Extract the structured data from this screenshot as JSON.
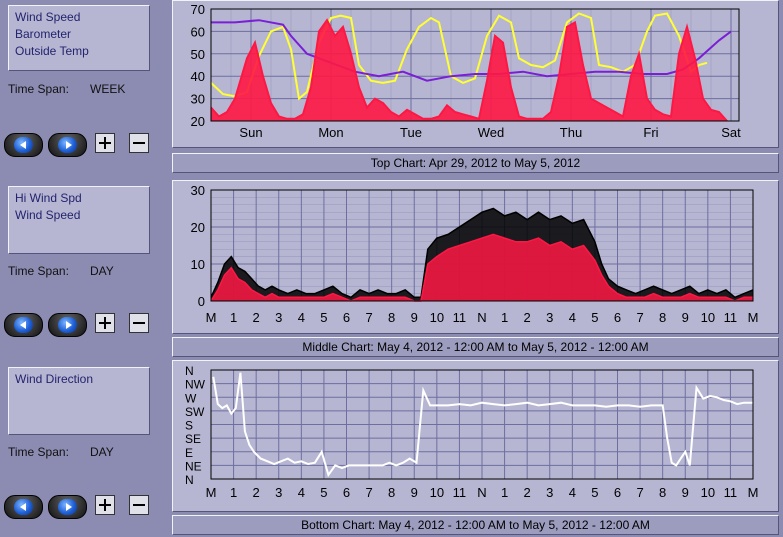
{
  "panels": [
    {
      "series": [
        "Wind Speed",
        "Barometer",
        "Outside Temp"
      ],
      "time_span_label": "Time Span:",
      "time_span_value": "WEEK",
      "caption": "Top Chart:  Apr 29, 2012  to  May 5, 2012"
    },
    {
      "series": [
        "Hi Wind Spd",
        "Wind Speed"
      ],
      "time_span_label": "Time Span:",
      "time_span_value": "DAY",
      "caption": "Middle Chart:  May 4, 2012 - 12:00 AM  to  May 5, 2012 - 12:00 AM"
    },
    {
      "series": [
        "Wind Direction"
      ],
      "time_span_label": "Time Span:",
      "time_span_value": "DAY",
      "caption": "Bottom Chart:  May 4, 2012 - 12:00 AM  to  May 5, 2012 - 12:00 AM"
    }
  ],
  "controls": {
    "prev_icon": "left-arrow-icon",
    "next_icon": "right-arrow-icon",
    "zoom_in_icon": "plus-icon",
    "zoom_out_icon": "minus-icon"
  },
  "colors": {
    "background": "#8c8cb2",
    "plot_background": "#b6b6d2",
    "grid": "#6e6ea0",
    "wind_speed": "#ff1744",
    "barometer": "#7a1fd6",
    "outside_temp": "#ffff33",
    "hi_wind": "#000000",
    "wind_direction": "#ffffff"
  },
  "chart_data": [
    {
      "type": "line",
      "ylim": [
        20,
        70
      ],
      "yticks": [
        "20",
        "30",
        "40",
        "50",
        "60",
        "70"
      ],
      "xticks": [
        "Sun",
        "Mon",
        "Tue",
        "Wed",
        "Thu",
        "Fri",
        "Sat"
      ],
      "x_range_days": [
        0,
        6.6
      ],
      "series": [
        {
          "name": "Outside Temp",
          "color": "#ffff33",
          "x": [
            0,
            0.15,
            0.3,
            0.45,
            0.6,
            0.75,
            0.9,
            1.0,
            1.1,
            1.2,
            1.35,
            1.5,
            1.62,
            1.75,
            1.85,
            2.0,
            2.15,
            2.3,
            2.45,
            2.6,
            2.75,
            2.85,
            3.0,
            3.15,
            3.3,
            3.45,
            3.6,
            3.75,
            3.85,
            4.0,
            4.15,
            4.3,
            4.45,
            4.6,
            4.75,
            4.85,
            5.0,
            5.15,
            5.3,
            5.45,
            5.55,
            5.7,
            5.85,
            6.0,
            6.1,
            6.2
          ],
          "y": [
            37,
            32,
            31,
            33,
            49,
            60,
            62,
            52,
            30,
            33,
            55,
            66,
            67,
            66,
            45,
            38,
            37,
            38,
            52,
            62,
            66,
            64,
            40,
            37,
            39,
            58,
            67,
            64,
            48,
            45,
            44,
            47,
            64,
            68,
            66,
            45,
            44,
            42,
            45,
            60,
            67,
            68,
            58,
            42,
            45,
            46
          ]
        },
        {
          "name": "Barometer",
          "color": "#7a1fd6",
          "x": [
            0,
            0.3,
            0.6,
            0.9,
            1.0,
            1.2,
            1.5,
            1.8,
            2.1,
            2.4,
            2.7,
            3.0,
            3.3,
            3.6,
            3.9,
            4.2,
            4.5,
            4.8,
            5.1,
            5.4,
            5.7,
            5.9,
            6.1,
            6.35,
            6.5
          ],
          "y": [
            64,
            64,
            65,
            63,
            58,
            50,
            46,
            42,
            40,
            42,
            38,
            40,
            41,
            41,
            42,
            40,
            41,
            42,
            42,
            41,
            41,
            43,
            48,
            56,
            60
          ]
        },
        {
          "name": "Wind Speed",
          "color": "#ff1744",
          "x": [
            0,
            0.1,
            0.2,
            0.3,
            0.45,
            0.55,
            0.65,
            0.75,
            0.85,
            0.95,
            1.05,
            1.15,
            1.25,
            1.35,
            1.45,
            1.55,
            1.65,
            1.75,
            1.85,
            1.95,
            2.05,
            2.15,
            2.25,
            2.35,
            2.45,
            2.55,
            2.65,
            2.75,
            2.85,
            2.95,
            3.05,
            3.15,
            3.25,
            3.35,
            3.45,
            3.55,
            3.65,
            3.75,
            3.85,
            3.95,
            4.05,
            4.15,
            4.25,
            4.35,
            4.45,
            4.55,
            4.65,
            4.75,
            4.85,
            4.95,
            5.05,
            5.15,
            5.25,
            5.35,
            5.45,
            5.55,
            5.65,
            5.75,
            5.85,
            5.95,
            6.05,
            6.15,
            6.25,
            6.35,
            6.45
          ],
          "y": [
            26,
            22,
            24,
            30,
            48,
            55,
            40,
            28,
            22,
            21,
            21,
            23,
            35,
            60,
            65,
            58,
            62,
            50,
            35,
            26,
            30,
            28,
            24,
            22,
            25,
            23,
            21,
            21,
            22,
            27,
            24,
            23,
            22,
            21,
            38,
            58,
            55,
            35,
            22,
            21,
            21,
            21,
            24,
            40,
            62,
            64,
            45,
            30,
            28,
            26,
            24,
            22,
            40,
            50,
            30,
            25,
            23,
            22,
            50,
            62,
            48,
            30,
            25,
            24,
            20
          ]
        }
      ]
    },
    {
      "type": "line",
      "ylim": [
        0,
        30
      ],
      "yticks": [
        "0",
        "10",
        "20",
        "30"
      ],
      "xticks": [
        "M",
        "1",
        "2",
        "3",
        "4",
        "5",
        "6",
        "7",
        "8",
        "9",
        "10",
        "11",
        "N",
        "1",
        "2",
        "3",
        "4",
        "5",
        "6",
        "7",
        "8",
        "9",
        "10",
        "11",
        "M"
      ],
      "x_range_hours": [
        0,
        24
      ],
      "series": [
        {
          "name": "Hi Wind Spd",
          "color": "#000000",
          "x": [
            0,
            0.3,
            0.6,
            0.9,
            1.2,
            1.5,
            1.8,
            2.1,
            2.4,
            2.7,
            3,
            3.4,
            3.8,
            4.2,
            4.6,
            5,
            5.4,
            5.8,
            6.2,
            6.6,
            7,
            7.4,
            7.8,
            8.2,
            8.6,
            9,
            9.3,
            9.6,
            10,
            10.5,
            11,
            11.5,
            12,
            12.5,
            13,
            13.5,
            14,
            14.5,
            15,
            15.5,
            16,
            16.5,
            17,
            17.3,
            17.6,
            18,
            18.4,
            18.8,
            19.2,
            19.6,
            20,
            20.4,
            20.8,
            21.2,
            21.6,
            22,
            22.4,
            22.8,
            23.2,
            23.6,
            24
          ],
          "y": [
            1,
            5,
            10,
            12,
            9,
            8,
            6,
            4,
            3,
            4,
            3,
            2,
            3,
            2,
            2,
            3,
            4,
            2,
            1,
            3,
            2,
            3,
            2,
            2,
            3,
            1,
            1,
            14,
            17,
            18,
            20,
            22,
            24,
            25,
            23,
            24,
            22,
            24,
            22,
            23,
            21,
            22,
            16,
            10,
            6,
            4,
            3,
            2,
            3,
            4,
            3,
            2,
            3,
            4,
            2,
            3,
            2,
            3,
            1,
            2,
            3
          ]
        },
        {
          "name": "Wind Speed",
          "color": "#ff1744",
          "x": [
            0,
            0.3,
            0.6,
            0.9,
            1.2,
            1.5,
            1.8,
            2.1,
            2.4,
            2.7,
            3,
            3.4,
            3.8,
            4.2,
            4.6,
            5,
            5.4,
            5.8,
            6.2,
            6.6,
            7,
            7.4,
            7.8,
            8.2,
            8.6,
            9,
            9.3,
            9.6,
            10,
            10.5,
            11,
            11.5,
            12,
            12.5,
            13,
            13.5,
            14,
            14.5,
            15,
            15.5,
            16,
            16.5,
            17,
            17.3,
            17.6,
            18,
            18.4,
            18.8,
            19.2,
            19.6,
            20,
            20.4,
            20.8,
            21.2,
            21.6,
            22,
            22.4,
            22.8,
            23.2,
            23.6,
            24
          ],
          "y": [
            0,
            3,
            7,
            9,
            6,
            5,
            3,
            2,
            1,
            2,
            1,
            1,
            1,
            1,
            1,
            1,
            2,
            1,
            0,
            1,
            1,
            1,
            1,
            1,
            1,
            0,
            0,
            10,
            12,
            14,
            15,
            16,
            17,
            18,
            17,
            16,
            16,
            17,
            15,
            16,
            14,
            15,
            11,
            7,
            4,
            2,
            1,
            1,
            1,
            2,
            1,
            1,
            1,
            2,
            1,
            1,
            1,
            1,
            0,
            1,
            1
          ]
        }
      ]
    },
    {
      "type": "line",
      "ylabels": [
        "N",
        "NE",
        "E",
        "SE",
        "S",
        "SW",
        "W",
        "NW",
        "N"
      ],
      "xticks": [
        "M",
        "1",
        "2",
        "3",
        "4",
        "5",
        "6",
        "7",
        "8",
        "9",
        "10",
        "11",
        "N",
        "1",
        "2",
        "3",
        "4",
        "5",
        "6",
        "7",
        "8",
        "9",
        "10",
        "11",
        "M"
      ],
      "x_range_hours": [
        0,
        24
      ],
      "series": [
        {
          "name": "Wind Direction",
          "color": "#ffffff",
          "x": [
            0.1,
            0.3,
            0.5,
            0.7,
            0.9,
            1.1,
            1.3,
            1.5,
            1.7,
            1.9,
            2.2,
            2.5,
            2.8,
            3.1,
            3.4,
            3.7,
            4.0,
            4.3,
            4.6,
            4.9,
            5.2,
            5.5,
            5.8,
            6.1,
            6.4,
            6.7,
            7.0,
            7.3,
            7.6,
            7.9,
            8.2,
            8.5,
            8.8,
            9.1,
            9.4,
            9.7,
            10.0,
            10.5,
            11,
            11.5,
            12,
            12.5,
            13,
            13.5,
            14,
            14.5,
            15,
            15.5,
            16,
            16.5,
            17,
            17.5,
            18,
            18.5,
            19,
            19.5,
            20,
            20.2,
            20.4,
            20.6,
            20.8,
            21.0,
            21.2,
            21.5,
            21.8,
            22.1,
            22.4,
            22.7,
            23,
            23.3,
            23.6,
            24
          ],
          "y": [
            7.5,
            5.5,
            5.2,
            5.4,
            4.8,
            5.2,
            7.8,
            3.5,
            2.5,
            2.0,
            1.5,
            1.3,
            1.1,
            1.3,
            1.5,
            1.2,
            1.3,
            1.1,
            1.2,
            2.0,
            0.3,
            1.0,
            0.8,
            1.0,
            1.0,
            1.0,
            1.0,
            1.0,
            1.0,
            1.2,
            1.0,
            1.2,
            1.5,
            1.2,
            6.5,
            5.4,
            5.4,
            5.4,
            5.5,
            5.4,
            5.6,
            5.5,
            5.4,
            5.5,
            5.6,
            5.4,
            5.5,
            5.6,
            5.4,
            5.4,
            5.4,
            5.3,
            5.4,
            5.4,
            5.3,
            5.4,
            5.4,
            3.0,
            1.2,
            1.0,
            1.5,
            2.0,
            1.0,
            6.7,
            5.9,
            6.1,
            6.0,
            5.8,
            5.7,
            5.5,
            5.6,
            5.6
          ]
        }
      ]
    }
  ]
}
